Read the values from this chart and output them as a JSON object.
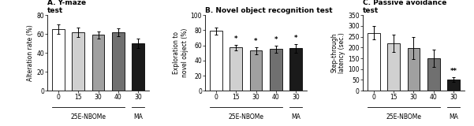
{
  "panels": [
    {
      "label": "A. Y-maze\ntest",
      "ylabel": "Alteration rate (%)",
      "ylim": [
        0,
        80
      ],
      "yticks": [
        0,
        20,
        40,
        60,
        80
      ],
      "categories": [
        "0",
        "15",
        "30",
        "40",
        "30"
      ],
      "values": [
        65,
        62,
        59,
        62,
        50
      ],
      "errors": [
        5,
        5,
        4,
        4,
        5
      ],
      "colors": [
        "#ffffff",
        "#d0d0d0",
        "#a0a0a0",
        "#707070",
        "#1a1a1a"
      ],
      "significance": [
        "",
        "",
        "",
        "",
        ""
      ],
      "xlabel_groups": [
        [
          "25E-NBOMe",
          0,
          3
        ],
        [
          "MA",
          4,
          4
        ]
      ]
    },
    {
      "label": "B. Novel object recognition test",
      "ylabel": "Exploration to\nnovel object (%)",
      "ylim": [
        0,
        100
      ],
      "yticks": [
        0,
        20,
        40,
        60,
        80,
        100
      ],
      "categories": [
        "0",
        "15",
        "30",
        "40",
        "30"
      ],
      "values": [
        79,
        57,
        53,
        55,
        56
      ],
      "errors": [
        5,
        4,
        5,
        5,
        6
      ],
      "colors": [
        "#ffffff",
        "#d0d0d0",
        "#a0a0a0",
        "#707070",
        "#1a1a1a"
      ],
      "significance": [
        "",
        "*",
        "*",
        "*",
        "*"
      ],
      "xlabel_groups": [
        [
          "25E-NBOMe",
          0,
          3
        ],
        [
          "MA",
          4,
          4
        ]
      ]
    },
    {
      "label": "C. Passive avoidance\ntest",
      "ylabel": "Step-through\nlatency (sec.)",
      "ylim": [
        0,
        350
      ],
      "yticks": [
        0,
        50,
        100,
        150,
        200,
        250,
        300,
        350
      ],
      "categories": [
        "0",
        "15",
        "30",
        "40",
        "30"
      ],
      "values": [
        268,
        218,
        197,
        150,
        52
      ],
      "errors": [
        30,
        40,
        50,
        40,
        12
      ],
      "colors": [
        "#ffffff",
        "#d0d0d0",
        "#a0a0a0",
        "#707070",
        "#1a1a1a"
      ],
      "significance": [
        "",
        "",
        "",
        "",
        "**"
      ],
      "xlabel_groups": [
        [
          "25E-NBOMe",
          0,
          3
        ],
        [
          "MA",
          4,
          4
        ]
      ]
    }
  ],
  "bar_width": 0.62,
  "edge_color": "#000000",
  "tick_fontsize": 5.5,
  "label_fontsize": 5.5,
  "title_fontsize": 6.5,
  "sig_fontsize": 6.0,
  "group_label_fontsize": 5.5,
  "background_color": "#ffffff"
}
